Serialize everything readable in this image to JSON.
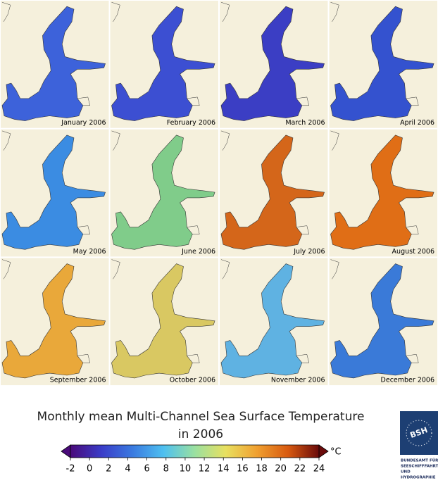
{
  "figure": {
    "title": [
      "Monthly mean Multi-Channel Sea Surface Temperature",
      "in 2006"
    ],
    "panels": [
      {
        "label": "January 2006",
        "color": "#3d62da"
      },
      {
        "label": "February 2006",
        "color": "#3c4fd2"
      },
      {
        "label": "March 2006",
        "color": "#3b3ec4"
      },
      {
        "label": "April 2006",
        "color": "#3452cf"
      },
      {
        "label": "May 2006",
        "color": "#3b8ce2"
      },
      {
        "label": "June 2006",
        "color": "#80cc8a"
      },
      {
        "label": "July 2006",
        "color": "#d4661a"
      },
      {
        "label": "August 2006",
        "color": "#e06e16"
      },
      {
        "label": "September 2006",
        "color": "#e9a83a"
      },
      {
        "label": "October 2006",
        "color": "#d9c862"
      },
      {
        "label": "November 2006",
        "color": "#5fb2e2"
      },
      {
        "label": "December 2006",
        "color": "#3a7ad8"
      }
    ],
    "colorbar": {
      "lim": [
        -2,
        24
      ],
      "ticks": [
        -2,
        0,
        2,
        4,
        6,
        8,
        10,
        12,
        14,
        16,
        18,
        20,
        22,
        24
      ],
      "unit": "°C",
      "colors": [
        "#4a0a7a",
        "#3a3cc8",
        "#3a7ae0",
        "#4ec0f0",
        "#9ae0a0",
        "#e8e060",
        "#f0a030",
        "#d85a10",
        "#6a0a0a"
      ]
    },
    "logo": {
      "mark": "BSH",
      "lines": [
        "BUNDESAMT FÜR",
        "SEESCHIFFFAHRT",
        "UND",
        "HYDROGRAPHIE"
      ]
    }
  }
}
